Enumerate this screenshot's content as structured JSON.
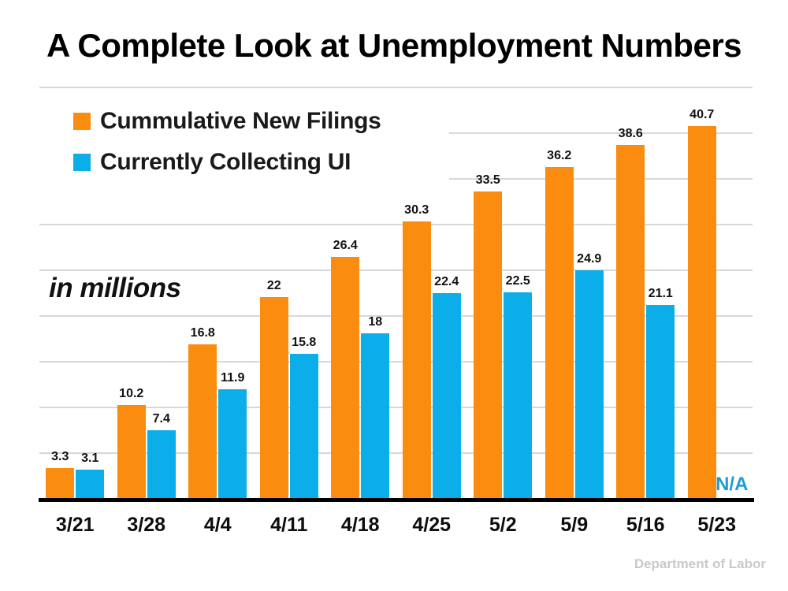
{
  "title": "A Complete Look at Unemployment Numbers",
  "annotation": "in millions",
  "footer": "Department of Labor",
  "colors": {
    "orange": "#FA8C0F",
    "blue": "#0BAEE8",
    "gridline": "#D8D8D8",
    "axis": "#000000",
    "footer_text": "#C9C9C9",
    "na_text": "#1E9CD8",
    "label_text": "#111111"
  },
  "legend": [
    {
      "label": "Cummulative New Filings",
      "color": "#FA8C0F"
    },
    {
      "label": "Currently Collecting UI",
      "color": "#0BAEE8"
    }
  ],
  "chart_data": {
    "type": "bar",
    "categories": [
      "3/21",
      "3/28",
      "4/4",
      "4/11",
      "4/18",
      "4/25",
      "5/2",
      "5/9",
      "5/16",
      "5/23"
    ],
    "series": [
      {
        "name": "Cummulative New Filings",
        "color": "#FA8C0F",
        "values": [
          3.3,
          10.2,
          16.8,
          22,
          26.4,
          30.3,
          33.5,
          36.2,
          38.6,
          40.7
        ],
        "labels": [
          "3.3",
          "10.2",
          "16.8",
          "22",
          "26.4",
          "30.3",
          "33.5",
          "36.2",
          "38.6",
          "40.7"
        ]
      },
      {
        "name": "Currently Collecting UI",
        "color": "#0BAEE8",
        "values": [
          3.1,
          7.4,
          11.9,
          15.8,
          18,
          22.4,
          22.5,
          24.9,
          21.1,
          null
        ],
        "labels": [
          "3.1",
          "7.4",
          "11.9",
          "15.8",
          "18",
          "22.4",
          "22.5",
          "24.9",
          "21.1",
          "N/A"
        ]
      }
    ],
    "title": "A Complete Look at Unemployment Numbers",
    "xlabel": "",
    "ylabel": "in millions",
    "ylim": [
      0,
      45
    ],
    "gridline_step": 5,
    "grid": true,
    "legend_position": "top-left",
    "y_axis_ticks_visible": false,
    "na_note": "N/A"
  }
}
